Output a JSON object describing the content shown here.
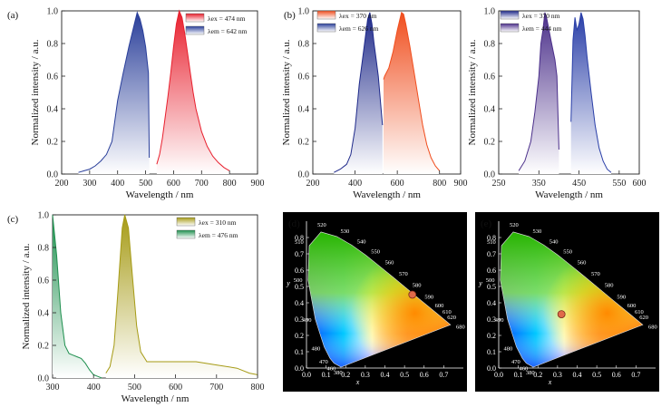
{
  "colors": {
    "blue": "#2a3f9a",
    "red": "#e8202e",
    "orange": "#f04e1e",
    "navy": "#1f2a8a",
    "purple": "#5a3a9a",
    "olive": "#a69b16",
    "green": "#1e8f4e",
    "point": "#e06a4a"
  },
  "chart_data": [
    {
      "panel": "(a)",
      "type": "area",
      "xlabel": "Wavelength / nm",
      "ylabel": "Normalized intensity / a.u.",
      "xlim": [
        200,
        900
      ],
      "ylim": [
        0,
        1.0
      ],
      "xticks": [
        "200",
        "300",
        "400",
        "500",
        "600",
        "700",
        "800",
        "900"
      ],
      "yticks": [
        "0.0",
        "0.2",
        "0.4",
        "0.6",
        "0.8",
        "1.0"
      ],
      "legend": [
        {
          "label": "λex = 474 nm",
          "color": "#e8202e"
        },
        {
          "label": "λem = 642 nm",
          "color": "#2a3f9a"
        }
      ],
      "series": [
        {
          "color": "#2a3f9a",
          "x": [
            260,
            280,
            300,
            320,
            340,
            360,
            380,
            400,
            420,
            440,
            460,
            470,
            480,
            490,
            500,
            510,
            513
          ],
          "y": [
            0.01,
            0.02,
            0.03,
            0.05,
            0.08,
            0.12,
            0.2,
            0.45,
            0.62,
            0.78,
            0.92,
            0.99,
            0.95,
            0.88,
            0.78,
            0.62,
            0.1
          ]
        },
        {
          "color": "#e8202e",
          "x": [
            540,
            550,
            560,
            570,
            580,
            590,
            600,
            610,
            620,
            630,
            640,
            650,
            660,
            670,
            680,
            700,
            720,
            740,
            760,
            780,
            800
          ],
          "y": [
            0.06,
            0.12,
            0.22,
            0.35,
            0.48,
            0.62,
            0.78,
            0.92,
            1.0,
            0.96,
            0.86,
            0.74,
            0.62,
            0.5,
            0.4,
            0.26,
            0.17,
            0.11,
            0.07,
            0.04,
            0.02
          ]
        }
      ]
    },
    {
      "panel": "(b)",
      "type": "area",
      "xlabel": "Wavelength / nm",
      "ylabel": "Normalized intensity / a.u.",
      "xlim": [
        200,
        900
      ],
      "ylim": [
        0,
        1.0
      ],
      "xticks": [
        "200",
        "400",
        "600",
        "800",
        "900"
      ],
      "yticks": [
        "0.0",
        "0.2",
        "0.4",
        "0.6",
        "0.8",
        "1.0"
      ],
      "legend": [
        {
          "label": "λex = 370 nm",
          "color": "#f04e1e"
        },
        {
          "label": "λem = 626 nm",
          "color": "#2a3f9a"
        }
      ],
      "series": [
        {
          "color": "#1f2a8a",
          "x": [
            300,
            330,
            360,
            380,
            400,
            420,
            440,
            450,
            460,
            470,
            480,
            490,
            500,
            510,
            520,
            530
          ],
          "y": [
            0.01,
            0.03,
            0.06,
            0.12,
            0.28,
            0.55,
            0.75,
            0.85,
            0.95,
            0.99,
            0.92,
            0.8,
            0.7,
            0.6,
            0.45,
            0.3
          ]
        },
        {
          "color": "#f04e1e",
          "x": [
            535,
            540,
            560,
            580,
            600,
            620,
            630,
            640,
            660,
            680,
            700,
            720,
            740,
            760,
            780,
            800
          ],
          "y": [
            0.58,
            0.6,
            0.65,
            0.75,
            0.88,
            0.99,
            0.98,
            0.92,
            0.78,
            0.62,
            0.46,
            0.3,
            0.18,
            0.1,
            0.05,
            0.02
          ]
        }
      ]
    },
    {
      "panel": "(b-right)",
      "type": "area",
      "xlabel": "Wavelength / nm",
      "ylabel": "Normalized intensity / a.u.",
      "xlim": [
        250,
        600
      ],
      "ylim": [
        0,
        1.0
      ],
      "xticks": [
        "250",
        "350",
        "450",
        "550",
        "600"
      ],
      "yticks": [
        "0.0",
        "0.2",
        "0.4",
        "0.6",
        "0.8",
        "1.0"
      ],
      "legend": [
        {
          "label": "λex = 370 nm",
          "color": "#1f2a8a"
        },
        {
          "label": "λem = 444 nm",
          "color": "#5a3a9a"
        }
      ],
      "series": [
        {
          "color": "#4b2f8a",
          "x": [
            300,
            315,
            330,
            340,
            350,
            355,
            360,
            365,
            370,
            380,
            390,
            395,
            400
          ],
          "y": [
            0.02,
            0.08,
            0.2,
            0.38,
            0.6,
            0.8,
            0.88,
            0.99,
            0.95,
            0.82,
            0.7,
            0.6,
            0.15
          ]
        },
        {
          "color": "#2a3fa8",
          "x": [
            430,
            435,
            440,
            445,
            450,
            455,
            460,
            465,
            470,
            480,
            490,
            500,
            510,
            520,
            530
          ],
          "y": [
            0.32,
            0.82,
            0.96,
            0.88,
            0.92,
            0.99,
            0.95,
            0.85,
            0.72,
            0.5,
            0.3,
            0.16,
            0.08,
            0.03,
            0.01
          ]
        }
      ]
    },
    {
      "panel": "(c)",
      "type": "area",
      "xlabel": "Wavelength / nm",
      "ylabel": "Normalized intensity / a.u.",
      "xlim": [
        300,
        800
      ],
      "ylim": [
        0,
        1.0
      ],
      "xticks": [
        "300",
        "400",
        "500",
        "600",
        "700",
        "800"
      ],
      "yticks": [
        "0.0",
        "0.2",
        "0.4",
        "0.6",
        "0.8",
        "1.0"
      ],
      "legend": [
        {
          "label": "λex = 310 nm",
          "color": "#a69b16"
        },
        {
          "label": "λem = 476 nm",
          "color": "#1e8f4e"
        }
      ],
      "series": [
        {
          "color": "#1e8f4e",
          "x": [
            300,
            310,
            320,
            330,
            340,
            350,
            360,
            370,
            380,
            390,
            400,
            410,
            420
          ],
          "y": [
            1.0,
            0.75,
            0.4,
            0.2,
            0.15,
            0.14,
            0.13,
            0.12,
            0.09,
            0.05,
            0.02,
            0.01,
            0.0
          ]
        },
        {
          "color": "#a69b16",
          "x": [
            430,
            440,
            450,
            460,
            470,
            476,
            485,
            495,
            505,
            515,
            530,
            560,
            600,
            650,
            700,
            750,
            780,
            800
          ],
          "y": [
            0.03,
            0.07,
            0.2,
            0.55,
            0.92,
            1.0,
            0.92,
            0.62,
            0.32,
            0.16,
            0.1,
            0.1,
            0.1,
            0.1,
            0.08,
            0.06,
            0.03,
            0.02
          ]
        }
      ]
    },
    {
      "panel": "(d)",
      "type": "scatter",
      "xlabel": "x",
      "ylabel": "y",
      "xlim": [
        0.0,
        0.8
      ],
      "ylim": [
        0.0,
        0.9
      ],
      "xticks": [
        "0.0",
        "0.1",
        "0.2",
        "0.3",
        "0.4",
        "0.5",
        "0.6",
        "0.7"
      ],
      "yticks": [
        "0.0",
        "0.1",
        "0.2",
        "0.3",
        "0.4",
        "0.5",
        "0.6",
        "0.7",
        "0.8"
      ],
      "point": [
        0.54,
        0.45
      ],
      "point_color": "#e06a4a"
    },
    {
      "panel": "(e)",
      "type": "scatter",
      "xlabel": "x",
      "ylabel": "y",
      "xlim": [
        0.0,
        0.8
      ],
      "ylim": [
        0.0,
        0.9
      ],
      "xticks": [
        "0.0",
        "0.1",
        "0.2",
        "0.3",
        "0.4",
        "0.5",
        "0.6",
        "0.7"
      ],
      "yticks": [
        "0.0",
        "0.1",
        "0.2",
        "0.3",
        "0.4",
        "0.5",
        "0.6",
        "0.7",
        "0.8"
      ],
      "point": [
        0.32,
        0.33
      ],
      "point_color": "#e06a4a"
    }
  ],
  "cie_labels": [
    "380",
    "460",
    "470",
    "480",
    "490",
    "500",
    "510",
    "520",
    "530",
    "540",
    "550",
    "560",
    "570",
    "580",
    "590",
    "600",
    "610",
    "620",
    "680"
  ]
}
